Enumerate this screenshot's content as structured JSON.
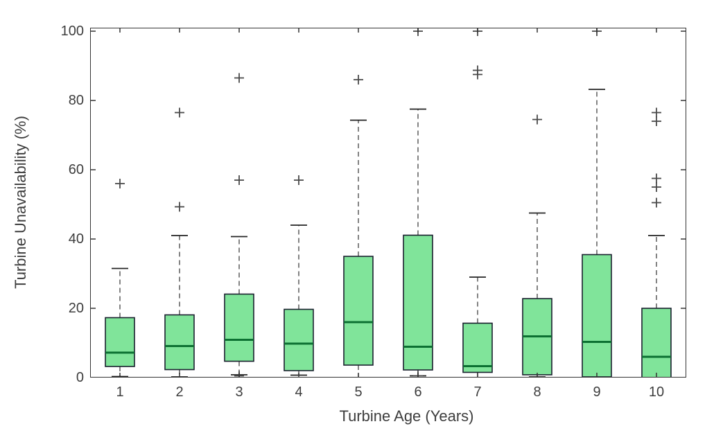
{
  "chart_data": {
    "type": "boxplot",
    "title": "",
    "xlabel": "Turbine Age (Years)",
    "ylabel": "Turbine Unavailability (%)",
    "categories": [
      "1",
      "2",
      "3",
      "4",
      "5",
      "6",
      "7",
      "8",
      "9",
      "10"
    ],
    "ylim": [
      0,
      101
    ],
    "yticks": [
      0,
      20,
      40,
      60,
      80,
      100
    ],
    "grid": false,
    "legend": "none",
    "boxes": [
      {
        "category": "1",
        "whisker_low": 0.3,
        "q1": 3.2,
        "median": 7.2,
        "q3": 17.3,
        "whisker_high": 31.5,
        "outliers": [
          56
        ]
      },
      {
        "category": "2",
        "whisker_low": 0.2,
        "q1": 2.3,
        "median": 9.1,
        "q3": 18.1,
        "whisker_high": 41,
        "outliers": [
          76.5,
          49.3
        ]
      },
      {
        "category": "3",
        "whisker_low": 0.8,
        "q1": 4.7,
        "median": 10.9,
        "q3": 24.1,
        "whisker_high": 40.7,
        "outliers": [
          86.5,
          57,
          0.5
        ]
      },
      {
        "category": "4",
        "whisker_low": 0.7,
        "q1": 2.0,
        "median": 9.8,
        "q3": 19.7,
        "whisker_high": 44,
        "outliers": [
          57
        ]
      },
      {
        "category": "5",
        "whisker_low": 0.0,
        "q1": 3.6,
        "median": 16.0,
        "q3": 35.0,
        "whisker_high": 74.3,
        "outliers": [
          86
        ]
      },
      {
        "category": "6",
        "whisker_low": 0.5,
        "q1": 2.2,
        "median": 8.9,
        "q3": 41.1,
        "whisker_high": 77.5,
        "outliers": [
          100,
          0.5
        ]
      },
      {
        "category": "7",
        "whisker_low": 0.0,
        "q1": 1.5,
        "median": 3.3,
        "q3": 15.7,
        "whisker_high": 29,
        "outliers": [
          100,
          88.7,
          87.5
        ]
      },
      {
        "category": "8",
        "whisker_low": 0.2,
        "q1": 0.8,
        "median": 11.9,
        "q3": 22.8,
        "whisker_high": 47.5,
        "outliers": [
          74.5
        ]
      },
      {
        "category": "9",
        "whisker_low": 0.2,
        "q1": 0.2,
        "median": 10.3,
        "q3": 35.5,
        "whisker_high": 83.2,
        "outliers": [
          100
        ]
      },
      {
        "category": "10",
        "whisker_low": 0.0,
        "q1": 0.0,
        "median": 6.0,
        "q3": 20.0,
        "whisker_high": 41,
        "outliers": [
          76.5,
          74,
          57.5,
          55,
          50.5
        ]
      }
    ],
    "colors": {
      "box_fill": "#80E49A",
      "box_edge": "#1a1f2e",
      "median": "#0c7032",
      "whisker": "#5a5a5a",
      "whisker_cap": "#222222",
      "outlier": "#4a4a4a",
      "axis": "#333333"
    }
  }
}
